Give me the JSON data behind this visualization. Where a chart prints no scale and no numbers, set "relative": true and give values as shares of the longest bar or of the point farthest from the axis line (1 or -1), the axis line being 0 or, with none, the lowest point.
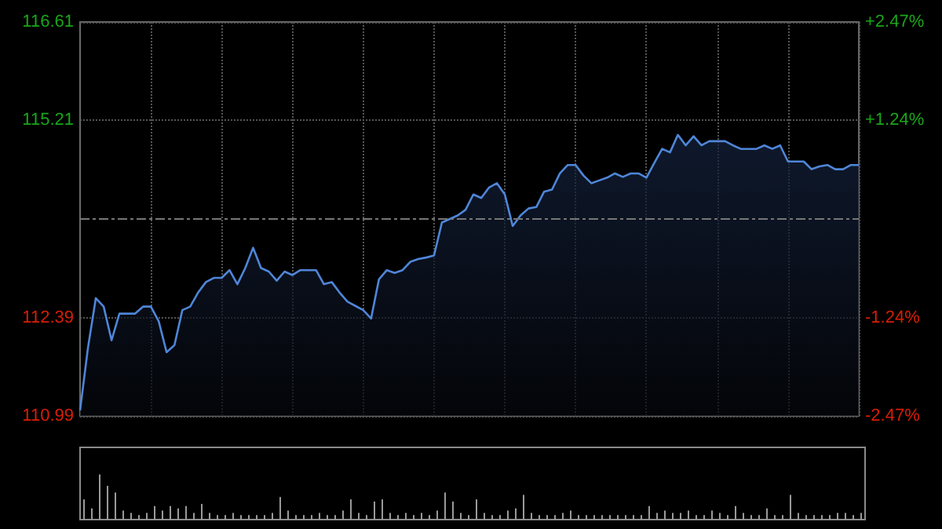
{
  "chart_data": [
    {
      "type": "area",
      "categories": [
        null,
        null,
        null,
        null,
        null,
        null,
        null,
        null,
        null,
        null,
        null,
        null,
        null,
        null,
        null,
        null,
        null,
        null,
        null,
        null,
        null,
        null,
        null,
        null,
        null,
        null,
        null,
        null,
        null,
        null,
        null,
        null,
        null,
        null,
        null,
        null,
        null,
        null,
        null,
        null,
        null,
        null,
        null,
        null,
        null,
        null,
        null,
        null,
        null,
        null,
        null,
        null,
        null,
        null,
        null,
        null,
        null,
        null,
        null,
        null,
        null,
        null,
        null,
        null,
        null,
        null,
        null,
        null,
        null,
        null,
        null,
        null,
        null,
        null,
        null,
        null,
        null,
        null,
        null,
        null,
        null,
        null,
        null,
        null,
        null,
        null,
        null,
        null,
        null,
        null,
        null,
        null,
        null,
        null,
        null,
        null,
        null,
        null,
        null,
        null
      ],
      "series": [
        {
          "color": "#4f86d8",
          "values": [
            111.07,
            111.96,
            112.67,
            112.55,
            112.07,
            112.45,
            112.45,
            112.45,
            112.55,
            112.55,
            112.34,
            111.9,
            112.0,
            112.5,
            112.55,
            112.75,
            112.9,
            112.96,
            112.96,
            113.07,
            112.87,
            113.1,
            113.39,
            113.1,
            113.05,
            112.92,
            113.05,
            113.0,
            113.07,
            113.07,
            113.07,
            112.87,
            112.9,
            112.75,
            112.62,
            112.56,
            112.5,
            112.38,
            112.94,
            113.07,
            113.03,
            113.07,
            113.19,
            113.23,
            113.25,
            113.28,
            113.75,
            113.8,
            113.85,
            113.93,
            114.15,
            114.1,
            114.25,
            114.31,
            114.15,
            113.7,
            113.85,
            113.95,
            113.97,
            114.19,
            114.22,
            114.45,
            114.57,
            114.57,
            114.42,
            114.31,
            114.35,
            114.39,
            114.45,
            114.4,
            114.45,
            114.45,
            114.39,
            114.6,
            114.8,
            114.75,
            115.0,
            114.85,
            114.98,
            114.85,
            114.91,
            114.91,
            114.91,
            114.85,
            114.8,
            114.8,
            114.8,
            114.85,
            114.8,
            114.85,
            114.62,
            114.62,
            114.62,
            114.51,
            114.55,
            114.57,
            114.51,
            114.51,
            114.57,
            114.57
          ]
        }
      ],
      "ylim": [
        110.99,
        116.61
      ],
      "yticks": [
        110.99,
        112.39,
        115.21,
        116.61
      ],
      "y2lim": [
        -2.47,
        2.47
      ],
      "y2ticks": [
        {
          "value": -2.47,
          "label": "-2.47%"
        },
        {
          "value": -1.24,
          "label": "-1.24%"
        },
        {
          "value": 1.24,
          "label": "+1.24%"
        },
        {
          "value": 2.47,
          "label": "+2.47%"
        }
      ],
      "ref_lines": [
        {
          "axis": "y",
          "value": 113.8,
          "line_style": "dashed",
          "color": "#777777"
        }
      ],
      "grid": true,
      "tick_labels": "y"
    },
    {
      "type": "bar",
      "relative": true,
      "categories": [
        null,
        null,
        null,
        null,
        null,
        null,
        null,
        null,
        null,
        null,
        null,
        null,
        null,
        null,
        null,
        null,
        null,
        null,
        null,
        null,
        null,
        null,
        null,
        null,
        null,
        null,
        null,
        null,
        null,
        null,
        null,
        null,
        null,
        null,
        null,
        null,
        null,
        null,
        null,
        null,
        null,
        null,
        null,
        null,
        null,
        null,
        null,
        null,
        null,
        null,
        null,
        null,
        null,
        null,
        null,
        null,
        null,
        null,
        null,
        null,
        null,
        null,
        null,
        null,
        null,
        null,
        null,
        null,
        null,
        null,
        null,
        null,
        null,
        null,
        null,
        null,
        null,
        null,
        null,
        null,
        null,
        null,
        null,
        null,
        null,
        null,
        null,
        null,
        null,
        null,
        null,
        null,
        null,
        null,
        null,
        null,
        null,
        null,
        null,
        null
      ],
      "color": "#9a9a9a",
      "values": [
        0.45,
        0.25,
        1,
        0.75,
        0.6,
        0.2,
        0.15,
        0.1,
        0.15,
        0.3,
        0.2,
        0.3,
        0.25,
        0.3,
        0.15,
        0.35,
        0.15,
        0.1,
        0.1,
        0.15,
        0.1,
        0.1,
        0.1,
        0.1,
        0.15,
        0.5,
        0.2,
        0.1,
        0.1,
        0.1,
        0.15,
        0.1,
        0.1,
        0.2,
        0.45,
        0.15,
        0.1,
        0.4,
        0.45,
        0.15,
        0.1,
        0.15,
        0.1,
        0.15,
        0.1,
        0.2,
        0.6,
        0.4,
        0.15,
        0.1,
        0.45,
        0.15,
        0.1,
        0.1,
        0.2,
        0.25,
        0.55,
        0.15,
        0.1,
        0.1,
        0.1,
        0.15,
        0.2,
        0.1,
        0.1,
        0.1,
        0.1,
        0.1,
        0.1,
        0.1,
        0.1,
        0.1,
        0.3,
        0.15,
        0.2,
        0.15,
        0.15,
        0.2,
        0.1,
        0.1,
        0.2,
        0.15,
        0.1,
        0.3,
        0.15,
        0.1,
        0.1,
        0.25,
        0.1,
        0.1,
        0.55,
        0.15,
        0.1,
        0.1,
        0.1,
        0.1,
        0.15,
        0.15,
        0.1,
        0.15
      ],
      "tick_labels": false
    }
  ]
}
